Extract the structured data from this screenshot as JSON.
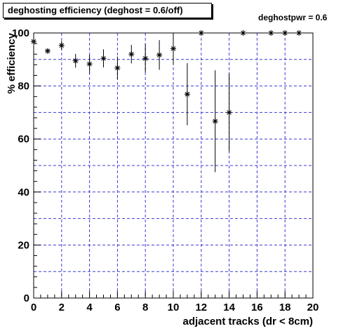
{
  "header": {
    "title": "deghosting efficiency (deghost = 0.6/off)",
    "annotation": "deghostpwr = 0.6"
  },
  "chart_data": {
    "type": "scatter",
    "title": "deghosting efficiency (deghost = 0.6/off)",
    "xlabel": "adjacent tracks (dr < 8cm)",
    "ylabel": "% efficiency",
    "xlim": [
      0,
      20
    ],
    "ylim": [
      0,
      100
    ],
    "xticks": [
      0,
      2,
      4,
      6,
      8,
      10,
      12,
      14,
      16,
      18,
      20
    ],
    "yticks": [
      0,
      20,
      40,
      60,
      80,
      100
    ],
    "grid": true,
    "marker": "star",
    "color": "#000000",
    "grid_color": "#3b3bd6",
    "series": [
      {
        "points": [
          {
            "x": 0,
            "y": 96.8,
            "err": 0
          },
          {
            "x": 1,
            "y": 93.2,
            "err": 0.8
          },
          {
            "x": 2,
            "y": 95.3,
            "err": 1.7
          },
          {
            "x": 3,
            "y": 89.5,
            "err": 2.6
          },
          {
            "x": 4,
            "y": 88.3,
            "err": 3.5
          },
          {
            "x": 5,
            "y": 90.4,
            "err": 3.4
          },
          {
            "x": 6,
            "y": 86.8,
            "err": 4.3
          },
          {
            "x": 7,
            "y": 92.0,
            "err": 3.5
          },
          {
            "x": 8,
            "y": 90.4,
            "err": 5.3
          },
          {
            "x": 9,
            "y": 91.7,
            "err": 5.6
          },
          {
            "x": 10,
            "y": 94.1,
            "err": 6.0
          },
          {
            "x": 11,
            "y": 76.9,
            "err": 11.7
          },
          {
            "x": 12,
            "y": 100,
            "err": 0
          },
          {
            "x": 13,
            "y": 66.7,
            "err": 19.2
          },
          {
            "x": 14,
            "y": 70.0,
            "err": 14.6
          },
          {
            "x": 15,
            "y": 100,
            "err": 0
          },
          {
            "x": 17,
            "y": 100,
            "err": 0
          },
          {
            "x": 18,
            "y": 100,
            "err": 0
          },
          {
            "x": 19,
            "y": 100,
            "err": 0
          }
        ]
      }
    ]
  }
}
